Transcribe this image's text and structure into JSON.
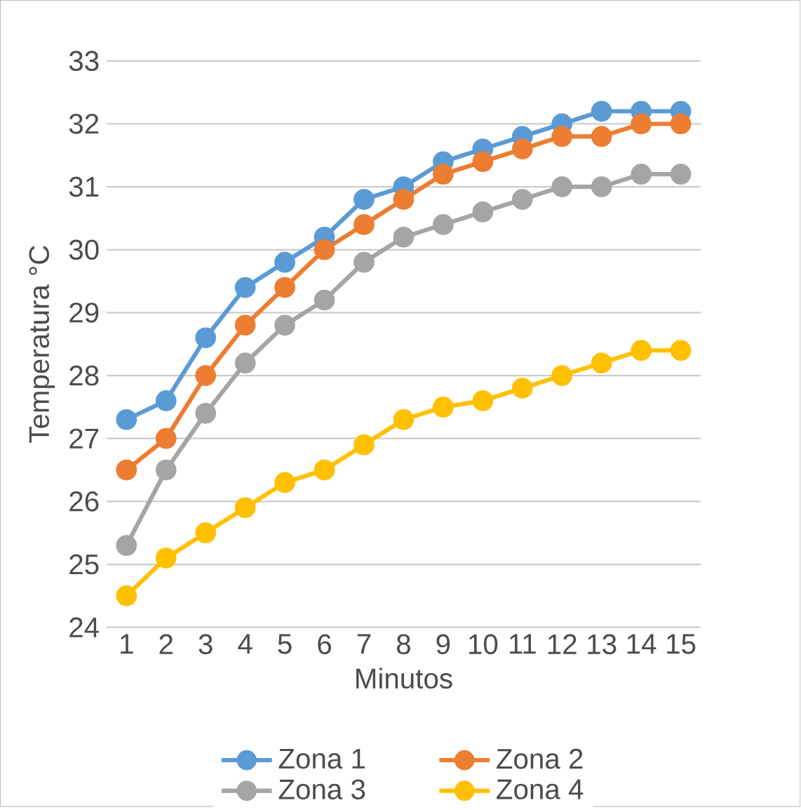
{
  "chart_data": {
    "type": "line",
    "xlabel": "Minutos",
    "ylabel": "Temperatura °C",
    "categories": [
      "1",
      "2",
      "3",
      "4",
      "5",
      "6",
      "7",
      "8",
      "9",
      "10",
      "11",
      "12",
      "13",
      "14",
      "15"
    ],
    "series": [
      {
        "name": "Zona 1",
        "color": "#5b9bd5",
        "values": [
          27.3,
          27.6,
          28.6,
          29.4,
          29.8,
          30.2,
          30.8,
          31.0,
          31.4,
          31.6,
          31.8,
          32.0,
          32.2,
          32.2,
          32.2
        ]
      },
      {
        "name": "Zona 2",
        "color": "#ed7d31",
        "values": [
          26.5,
          27.0,
          28.0,
          28.8,
          29.4,
          30.0,
          30.4,
          30.8,
          31.2,
          31.4,
          31.6,
          31.8,
          31.8,
          32.0,
          32.0
        ]
      },
      {
        "name": "Zona 3",
        "color": "#a5a5a5",
        "values": [
          25.3,
          26.5,
          27.4,
          28.2,
          28.8,
          29.2,
          29.8,
          30.2,
          30.4,
          30.6,
          30.8,
          31.0,
          31.0,
          31.2,
          31.2
        ]
      },
      {
        "name": "Zona 4",
        "color": "#ffc000",
        "values": [
          24.5,
          25.1,
          25.5,
          25.9,
          26.3,
          26.5,
          26.9,
          27.3,
          27.5,
          27.6,
          27.8,
          28.0,
          28.2,
          28.4,
          28.4
        ]
      }
    ],
    "ylim": [
      24,
      33
    ],
    "yticks": [
      24,
      25,
      26,
      27,
      28,
      29,
      30,
      31,
      32,
      33
    ],
    "grid": "y",
    "legend": "bottom",
    "marker": "circle",
    "line_style": "solid"
  }
}
